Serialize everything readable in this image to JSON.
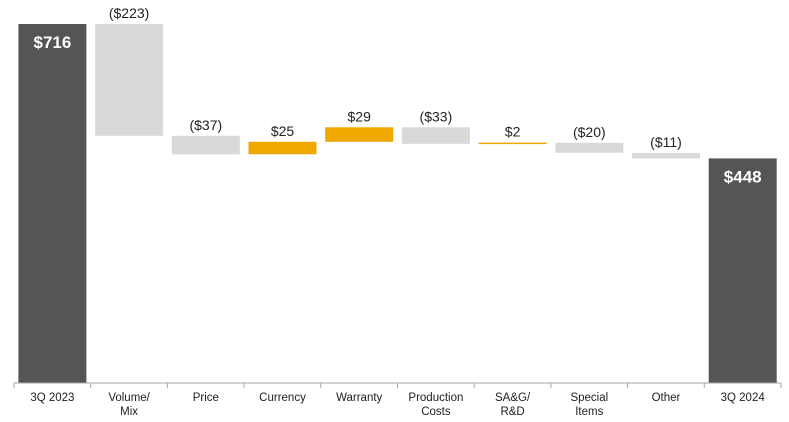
{
  "chart_data": {
    "type": "waterfall",
    "unit": "$",
    "categories": [
      [
        "3Q 2023"
      ],
      [
        "Volume/",
        "Mix"
      ],
      [
        "Price"
      ],
      [
        "Currency"
      ],
      [
        "Warranty"
      ],
      [
        "Production",
        "Costs"
      ],
      [
        "SA&G/",
        "R&D"
      ],
      [
        "Special",
        "Items"
      ],
      [
        "Other"
      ],
      [
        "3Q 2024"
      ]
    ],
    "bars": [
      {
        "kind": "total",
        "value": 716,
        "label": "$716"
      },
      {
        "kind": "delta",
        "value": -223,
        "label": "($223)"
      },
      {
        "kind": "delta",
        "value": -37,
        "label": "($37)"
      },
      {
        "kind": "delta",
        "value": 25,
        "label": "$25"
      },
      {
        "kind": "delta",
        "value": 29,
        "label": "$29"
      },
      {
        "kind": "delta",
        "value": -33,
        "label": "($33)"
      },
      {
        "kind": "delta",
        "value": 2,
        "label": "$2"
      },
      {
        "kind": "delta",
        "value": -20,
        "label": "($20)"
      },
      {
        "kind": "delta",
        "value": -11,
        "label": "($11)"
      },
      {
        "kind": "total",
        "value": 448,
        "label": "$448"
      }
    ],
    "colors": {
      "total": "#555555",
      "negative": "#d9d9d9",
      "positive": "#f0a800",
      "axis": "#a6a6a6"
    },
    "ylim": [
      0,
      720
    ]
  }
}
